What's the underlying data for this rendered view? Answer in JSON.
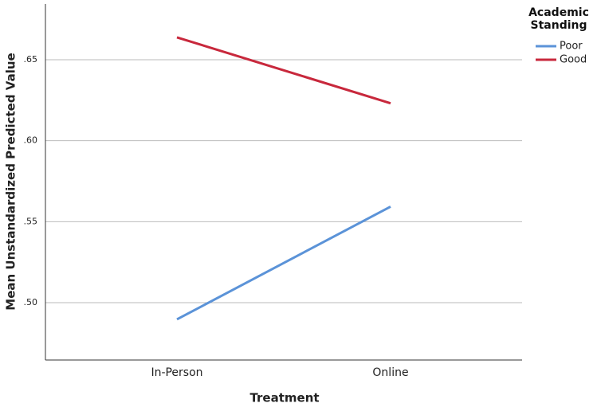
{
  "chart_data": {
    "type": "line",
    "x_label": "Treatment",
    "y_label": "Mean Unstandardized Predicted Value",
    "legend_title": "Academic Standing",
    "legend_position": "right",
    "categories": [
      "In-Person",
      "Online"
    ],
    "series": [
      {
        "name": "Poor",
        "color": "#5b93d8",
        "values": [
          0.4897,
          0.5593
        ]
      },
      {
        "name": "Good",
        "color": "#c8283c",
        "values": [
          0.6638,
          0.6231
        ]
      }
    ],
    "ylim": [
      0.4646,
      0.6844
    ],
    "yticks": [
      {
        "value": 0.5,
        "label": ".50"
      },
      {
        "value": 0.55,
        "label": ".55"
      },
      {
        "value": 0.6,
        "label": ".60"
      },
      {
        "value": 0.65,
        "label": ".65"
      }
    ],
    "grid": true
  }
}
